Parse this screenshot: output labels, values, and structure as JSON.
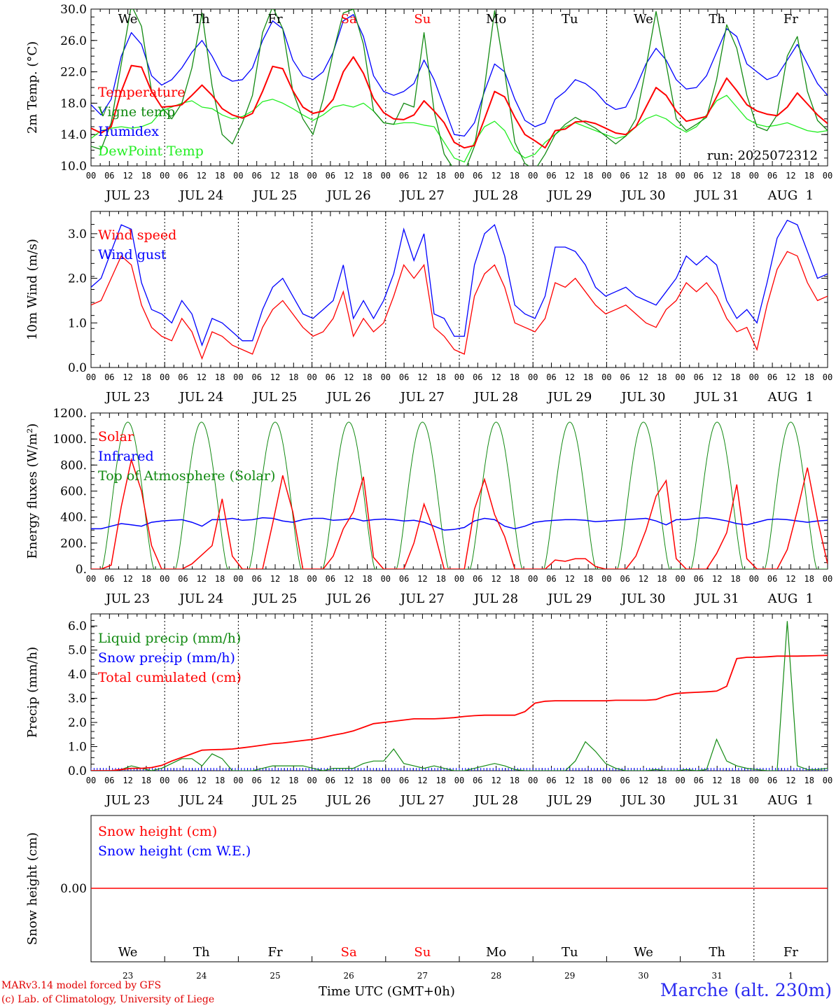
{
  "chart_data": [
    {
      "type": "line",
      "ylabel": "2m Temp. (°C)",
      "ylim": [
        10,
        30
      ],
      "yticks": [
        "10.0",
        "14.0",
        "18.0",
        "22.0",
        "26.0",
        "30.0"
      ],
      "annotation": "run: 2025072312",
      "series": [
        {
          "name": "Temperature",
          "color": "#ff0000",
          "values": [
            14.8,
            14.2,
            15.0,
            19.5,
            22.8,
            22.6,
            19.5,
            17.5,
            17.6,
            17.8,
            19.0,
            20.3,
            19.0,
            17.3,
            16.5,
            16.1,
            16.7,
            19.5,
            22.7,
            22.4,
            19.6,
            17.5,
            16.7,
            17.0,
            18.5,
            22.0,
            23.9,
            21.8,
            18.6,
            16.8,
            16.0,
            15.9,
            16.5,
            18.3,
            17.0,
            15.5,
            13.0,
            12.3,
            12.6,
            16.0,
            19.5,
            18.8,
            16.2,
            14.0,
            13.2,
            12.3,
            14.5,
            14.7,
            15.6,
            15.7,
            15.4,
            14.8,
            14.2,
            14.0,
            15.0,
            17.5,
            20.0,
            19.0,
            17.0,
            15.7,
            16.0,
            16.3,
            18.8,
            21.2,
            19.6,
            17.8,
            17.0,
            16.6,
            16.4,
            17.5,
            19.3,
            17.9,
            16.5,
            15.4
          ]
        },
        {
          "name": "Vigne temp",
          "color": "#128a12",
          "values": [
            12.5,
            12.1,
            15.5,
            23.0,
            30.5,
            27.8,
            19.5,
            17.5,
            16.0,
            18.0,
            22.5,
            29.5,
            20.2,
            14.0,
            12.8,
            15.5,
            19.0,
            27.0,
            30.3,
            27.5,
            19.5,
            16.0,
            14.0,
            18.5,
            24.5,
            29.5,
            30.0,
            25.5,
            17.0,
            15.5,
            15.3,
            18.0,
            17.5,
            27.0,
            17.0,
            11.5,
            9.5,
            9.2,
            12.5,
            20.0,
            29.8,
            22.0,
            13.0,
            10.3,
            9.5,
            11.5,
            14.0,
            15.3,
            16.2,
            15.5,
            14.8,
            13.8,
            12.8,
            13.8,
            16.0,
            22.5,
            29.7,
            23.0,
            16.0,
            14.5,
            15.3,
            16.2,
            21.0,
            28.0,
            25.0,
            19.0,
            15.0,
            14.5,
            16.5,
            24.0,
            26.5,
            19.5,
            15.8,
            14.5
          ]
        },
        {
          "name": "Humidex",
          "color": "#0000ff",
          "values": [
            17.8,
            16.5,
            18.5,
            24.0,
            27.0,
            25.5,
            21.5,
            20.3,
            21.0,
            22.5,
            24.5,
            26.0,
            24.0,
            21.5,
            20.8,
            21.0,
            22.5,
            26.0,
            28.5,
            27.5,
            23.5,
            21.5,
            21.0,
            22.0,
            24.5,
            28.5,
            29.3,
            26.5,
            21.5,
            19.5,
            19.0,
            19.5,
            20.5,
            23.5,
            21.0,
            17.5,
            14.0,
            13.8,
            15.5,
            19.5,
            23.0,
            22.0,
            18.5,
            15.8,
            15.0,
            15.5,
            18.5,
            19.5,
            21.0,
            20.5,
            19.5,
            18.0,
            17.2,
            17.5,
            20.0,
            23.0,
            25.0,
            23.5,
            21.0,
            19.8,
            20.0,
            21.5,
            24.5,
            27.5,
            26.5,
            23.0,
            22.0,
            21.0,
            21.5,
            23.5,
            25.5,
            23.0,
            20.5,
            19.0
          ]
        },
        {
          "name": "DewPoint Temp",
          "color": "#22ee22",
          "values": [
            13.5,
            14.5,
            14.8,
            15.0,
            14.8,
            15.0,
            15.5,
            17.0,
            17.5,
            18.0,
            18.3,
            17.5,
            17.3,
            16.5,
            16.0,
            16.3,
            17.0,
            18.2,
            18.5,
            18.0,
            17.3,
            16.5,
            15.8,
            16.5,
            17.5,
            17.8,
            17.5,
            18.0,
            17.0,
            15.5,
            15.3,
            15.5,
            15.5,
            15.2,
            15.0,
            13.0,
            11.0,
            10.5,
            13.0,
            15.0,
            15.7,
            14.5,
            12.0,
            11.0,
            11.5,
            13.0,
            14.0,
            15.0,
            15.5,
            15.0,
            14.5,
            14.0,
            13.5,
            13.8,
            15.0,
            16.0,
            16.5,
            16.0,
            15.0,
            14.3,
            15.0,
            16.5,
            18.3,
            19.0,
            17.5,
            16.0,
            15.3,
            15.0,
            15.2,
            15.5,
            15.0,
            14.5,
            14.3,
            14.5
          ]
        }
      ]
    },
    {
      "type": "line",
      "ylabel": "10m Wind (m/s)",
      "ylim": [
        0,
        3.5
      ],
      "yticks": [
        "0.0",
        "1.0",
        "2.0",
        "3.0"
      ],
      "series": [
        {
          "name": "Wind speed",
          "color": "#ff0000",
          "values": [
            1.4,
            1.5,
            2.0,
            2.5,
            2.3,
            1.4,
            0.9,
            0.7,
            0.6,
            1.1,
            0.8,
            0.2,
            0.8,
            0.7,
            0.5,
            0.4,
            0.3,
            0.9,
            1.3,
            1.5,
            1.2,
            0.9,
            0.7,
            0.8,
            1.1,
            1.7,
            0.7,
            1.1,
            0.8,
            1.0,
            1.6,
            2.3,
            2.0,
            2.3,
            0.9,
            0.7,
            0.4,
            0.3,
            1.6,
            2.1,
            2.3,
            1.8,
            1.0,
            0.9,
            0.8,
            1.1,
            1.9,
            1.8,
            2.0,
            1.7,
            1.4,
            1.2,
            1.3,
            1.4,
            1.2,
            1.0,
            0.9,
            1.3,
            1.5,
            1.9,
            1.7,
            1.9,
            1.6,
            1.1,
            0.8,
            0.9,
            0.4,
            1.4,
            2.2,
            2.6,
            2.5,
            1.9,
            1.5,
            1.6
          ]
        },
        {
          "name": "Wind gust",
          "color": "#0000ff",
          "values": [
            1.8,
            2.0,
            2.6,
            3.2,
            3.1,
            1.9,
            1.3,
            1.2,
            1.0,
            1.5,
            1.2,
            0.5,
            1.1,
            1.0,
            0.8,
            0.6,
            0.6,
            1.3,
            1.8,
            2.0,
            1.6,
            1.2,
            1.1,
            1.3,
            1.5,
            2.3,
            1.1,
            1.5,
            1.1,
            1.5,
            2.1,
            3.1,
            2.4,
            3.0,
            1.2,
            1.1,
            0.7,
            0.7,
            2.3,
            3.0,
            3.2,
            2.5,
            1.4,
            1.2,
            1.1,
            1.6,
            2.7,
            2.7,
            2.6,
            2.3,
            1.8,
            1.6,
            1.7,
            1.8,
            1.6,
            1.5,
            1.4,
            1.7,
            2.0,
            2.5,
            2.3,
            2.5,
            2.3,
            1.5,
            1.1,
            1.3,
            1.0,
            1.9,
            2.9,
            3.3,
            3.2,
            2.6,
            2.0,
            2.1
          ]
        }
      ]
    },
    {
      "type": "line",
      "ylabel": "Energy fluxes (W/m²)",
      "ylim": [
        0,
        1200
      ],
      "yticks": [
        "0.",
        "200.",
        "400.",
        "600.",
        "800.",
        "1000.",
        "1200."
      ],
      "series": [
        {
          "name": "Solar",
          "color": "#ff0000",
          "values": [
            0,
            0,
            30,
            480,
            840,
            600,
            180,
            0,
            0,
            0,
            40,
            110,
            180,
            540,
            100,
            0,
            0,
            0,
            350,
            720,
            440,
            0,
            0,
            0,
            100,
            310,
            440,
            710,
            90,
            0,
            0,
            0,
            200,
            500,
            290,
            0,
            0,
            0,
            460,
            690,
            420,
            250,
            0,
            0,
            0,
            0,
            70,
            60,
            80,
            80,
            20,
            0,
            0,
            0,
            100,
            300,
            560,
            680,
            80,
            0,
            0,
            0,
            120,
            280,
            650,
            80,
            0,
            0,
            0,
            150,
            450,
            780,
            380,
            40
          ]
        },
        {
          "name": "Infrared",
          "color": "#0000ff",
          "values": [
            310,
            310,
            330,
            350,
            340,
            330,
            360,
            370,
            375,
            380,
            360,
            330,
            380,
            380,
            390,
            375,
            380,
            395,
            390,
            370,
            360,
            380,
            390,
            390,
            375,
            380,
            390,
            370,
            380,
            385,
            380,
            370,
            375,
            360,
            330,
            300,
            305,
            320,
            370,
            390,
            380,
            330,
            310,
            330,
            360,
            370,
            375,
            380,
            380,
            375,
            365,
            370,
            375,
            380,
            385,
            390,
            370,
            340,
            380,
            380,
            390,
            395,
            385,
            370,
            350,
            340,
            360,
            380,
            385,
            380,
            370,
            360,
            370,
            375
          ]
        },
        {
          "name": "Top of Atmosphere (Solar)",
          "color": "#128a12",
          "shape": "daily-bell",
          "peak": 1130
        }
      ]
    },
    {
      "type": "line",
      "ylabel": "Precip (mm/h)",
      "ylim": [
        0,
        6.5
      ],
      "yticks": [
        "0.0",
        "1.0",
        "2.0",
        "3.0",
        "4.0",
        "5.0",
        "6.0"
      ],
      "series": [
        {
          "name": "Liquid precip (mm/h)",
          "color": "#128a12",
          "values": [
            0,
            0,
            0,
            0.05,
            0.2,
            0.1,
            0,
            0.1,
            0.3,
            0.5,
            0.5,
            0.2,
            0.7,
            0.5,
            0,
            0,
            0,
            0.1,
            0.2,
            0.2,
            0.2,
            0.2,
            0.1,
            0,
            0.1,
            0.1,
            0.1,
            0.3,
            0.4,
            0.4,
            0.9,
            0.3,
            0.2,
            0.1,
            0.2,
            0.1,
            0,
            0,
            0.1,
            0.2,
            0.3,
            0.2,
            0.05,
            0,
            0,
            0,
            0,
            0,
            0.4,
            1.2,
            0.8,
            0.3,
            0.1,
            0,
            0,
            0,
            0.05,
            0,
            0,
            0.05,
            0,
            0.05,
            1.3,
            0.4,
            0.2,
            0.1,
            0.05,
            0,
            0,
            6.2,
            0.2,
            0.05,
            0.05,
            0.1
          ]
        },
        {
          "name": "Snow precip (mm/h)",
          "color": "#0000ff",
          "values": [
            0,
            0,
            0,
            0,
            0,
            0,
            0,
            0,
            0,
            0,
            0,
            0,
            0,
            0,
            0,
            0,
            0,
            0,
            0,
            0,
            0,
            0,
            0,
            0,
            0,
            0,
            0,
            0,
            0,
            0,
            0,
            0,
            0,
            0,
            0,
            0,
            0,
            0,
            0,
            0,
            0,
            0,
            0,
            0,
            0,
            0,
            0,
            0,
            0,
            0,
            0,
            0,
            0,
            0,
            0,
            0,
            0,
            0,
            0,
            0,
            0,
            0,
            0,
            0,
            0,
            0,
            0,
            0,
            0,
            0,
            0,
            0,
            0,
            0
          ]
        },
        {
          "name": "Total cumulated (cm)",
          "color": "#ff0000",
          "values": [
            0,
            0,
            0,
            0.05,
            0.1,
            0.1,
            0.13,
            0.22,
            0.4,
            0.55,
            0.7,
            0.85,
            0.87,
            0.88,
            0.9,
            0.95,
            1.0,
            1.06,
            1.12,
            1.15,
            1.2,
            1.25,
            1.3,
            1.38,
            1.47,
            1.55,
            1.65,
            1.8,
            1.95,
            2.0,
            2.05,
            2.1,
            2.15,
            2.15,
            2.15,
            2.17,
            2.2,
            2.25,
            2.28,
            2.3,
            2.3,
            2.3,
            2.3,
            2.45,
            2.8,
            2.88,
            2.9,
            2.9,
            2.9,
            2.9,
            2.9,
            2.9,
            2.92,
            2.92,
            2.92,
            2.92,
            2.95,
            3.1,
            3.2,
            3.23,
            3.25,
            3.27,
            3.3,
            3.5,
            4.65,
            4.7,
            4.7,
            4.72,
            4.75,
            4.75,
            4.75,
            4.76,
            4.77,
            4.78
          ]
        }
      ]
    },
    {
      "type": "line",
      "ylabel": "Snow height (cm)",
      "yticks": [
        "0.00"
      ],
      "series": [
        {
          "name": "Snow height (cm)",
          "color": "#ff0000",
          "values": [
            0,
            0
          ]
        },
        {
          "name": "Snow height (cm W.E.)",
          "color": "#0000ff",
          "values": [
            0,
            0
          ]
        }
      ]
    }
  ],
  "x_axis": {
    "hour_labels": [
      "00",
      "06",
      "12",
      "18"
    ],
    "end_label": "00",
    "days": [
      "JUL 23",
      "JUL 24",
      "JUL 25",
      "JUL 26",
      "JUL 27",
      "JUL 28",
      "JUL 29",
      "JUL 30",
      "JUL 31",
      "AUG  1"
    ],
    "weekdays": [
      "We",
      "Th",
      "Fr",
      "Sa",
      "Su",
      "Mo",
      "Tu",
      "We",
      "Th",
      "Fr"
    ],
    "weekday_colors": [
      "#000000",
      "#000000",
      "#000000",
      "#ff0000",
      "#ff0000",
      "#000000",
      "#000000",
      "#000000",
      "#000000",
      "#000000"
    ],
    "day_numbers": [
      "23",
      "24",
      "25",
      "26",
      "27",
      "28",
      "29",
      "30",
      "31",
      "1"
    ]
  },
  "footer": {
    "credit_line1": "MARv3.14 model forced by GFS",
    "credit_line2": "(c) Lab. of Climatology, University of Liege",
    "time_label": "Time UTC (GMT+0h)",
    "station": "Marche (alt. 230m)"
  }
}
